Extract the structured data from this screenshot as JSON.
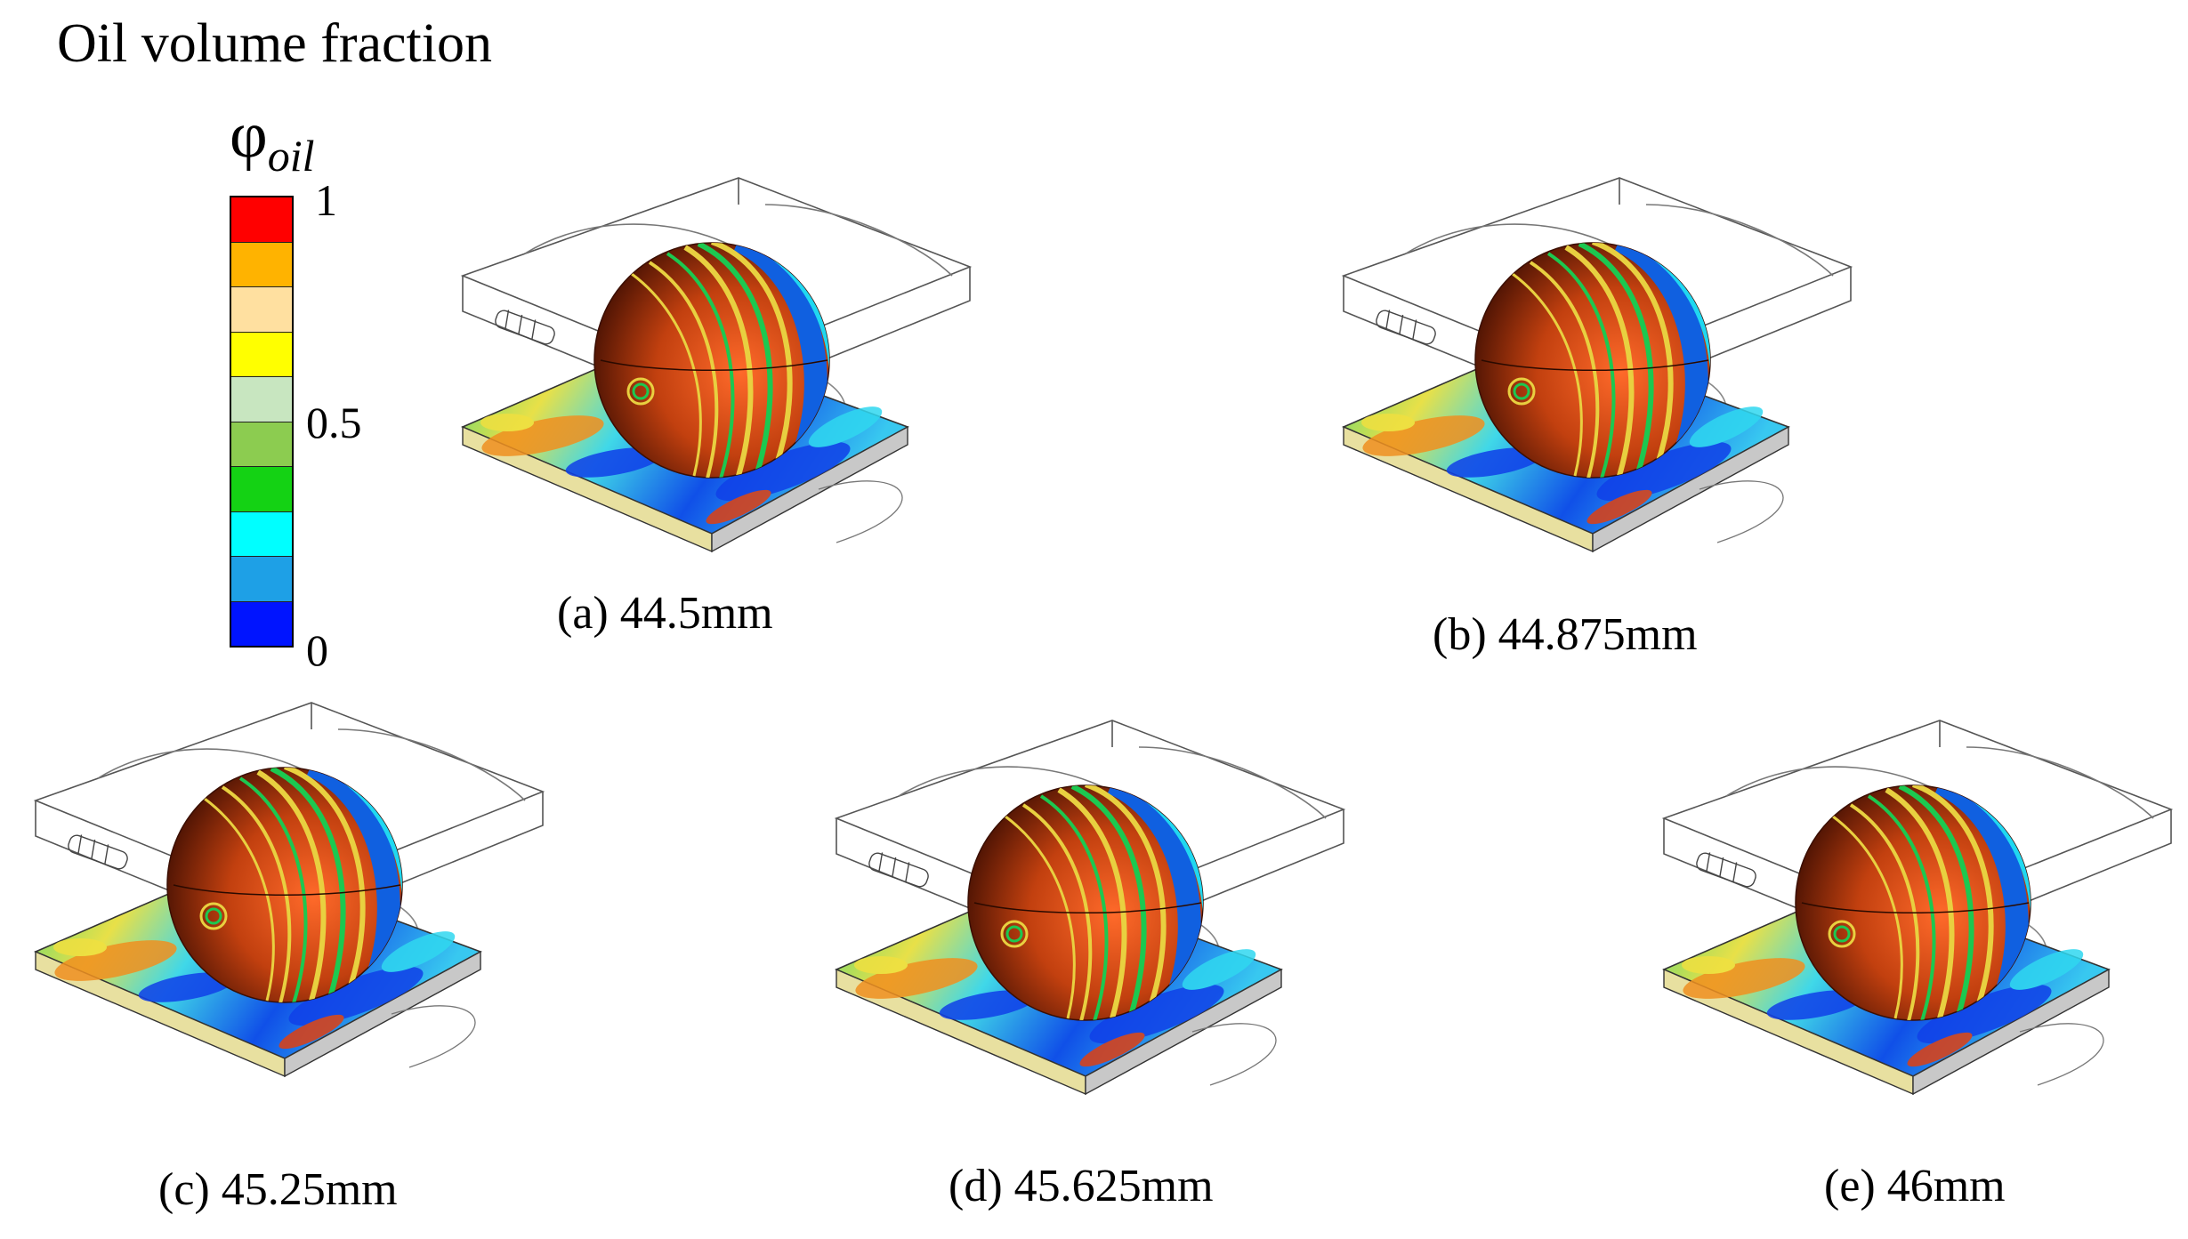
{
  "legend": {
    "title": "Oil volume fraction",
    "symbol": "φ",
    "symbol_subscript": "oil",
    "ticks": {
      "max": "1",
      "mid": "0.5",
      "min": "0"
    },
    "colors": [
      "#ff0000",
      "#ffb300",
      "#ffe0a0",
      "#ffff00",
      "#c8e6c0",
      "#8ccc50",
      "#14d214",
      "#00ffff",
      "#1ea0e6",
      "#0014ff"
    ]
  },
  "panels": [
    {
      "caption": "(a) 44.5mm"
    },
    {
      "caption": "(b) 44.875mm"
    },
    {
      "caption": "(c) 45.25mm"
    },
    {
      "caption": "(d) 45.625mm"
    },
    {
      "caption": "(e) 46mm"
    }
  ],
  "palette": {
    "sphere_dark": "#5a1604",
    "sphere_mid": "#b83a0e",
    "sphere_light": "#ff6a2a",
    "stripe_yellow": "#e8d040",
    "stripe_green": "#1cc850",
    "stripe_blue": "#1060e0",
    "stripe_cyan": "#20d8f0",
    "plate_green": "#40d070",
    "plate_cyan": "#3ad8e8",
    "plate_blue": "#1040e8",
    "plate_yellow": "#f0e040",
    "plate_orange": "#f09020",
    "plate_red": "#e04010"
  }
}
